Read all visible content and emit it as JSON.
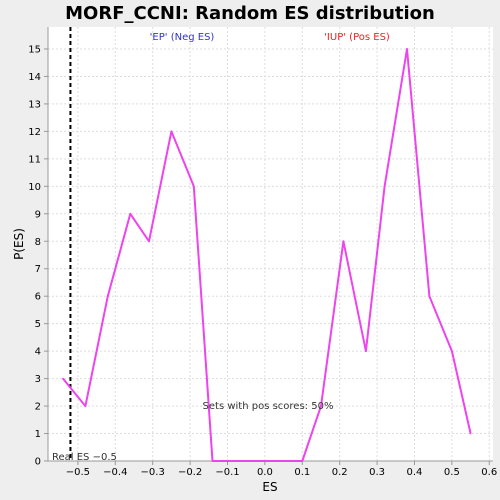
{
  "chart_data": {
    "type": "line",
    "title": "MORF_CCNI: Random ES distribution",
    "xlabel": "ES",
    "ylabel": "P(ES)",
    "xlim": [
      -0.58,
      0.61
    ],
    "ylim": [
      0,
      15.8
    ],
    "x_ticks": [
      -0.5,
      -0.4,
      -0.3,
      -0.2,
      -0.1,
      0.0,
      0.1,
      0.2,
      0.3,
      0.4,
      0.5,
      0.6
    ],
    "x_tick_labels": [
      "−0.5",
      "−0.4",
      "−0.3",
      "−0.2",
      "−0.1",
      "0.0",
      "0.1",
      "0.2",
      "0.3",
      "0.4",
      "0.5",
      "0.6"
    ],
    "y_ticks": [
      0,
      1,
      2,
      3,
      4,
      5,
      6,
      7,
      8,
      9,
      10,
      11,
      12,
      13,
      14,
      15
    ],
    "grid": true,
    "series": [
      {
        "color": "#ee44ee",
        "x": [
          -0.54,
          -0.48,
          -0.42,
          -0.36,
          -0.31,
          -0.25,
          -0.19,
          -0.14,
          -0.08,
          -0.02,
          0.04,
          0.1,
          0.15,
          0.21,
          0.27,
          0.32,
          0.38,
          0.44,
          0.5,
          0.55
        ],
        "y": [
          3,
          2,
          6,
          9,
          8,
          12,
          10,
          0,
          0,
          0,
          0,
          0,
          2,
          8,
          4,
          10,
          15,
          6,
          4,
          1
        ]
      }
    ],
    "real_es": {
      "value": -0.52,
      "label": "Real ES −0.5",
      "color": "#000000"
    },
    "annotations": {
      "neg": {
        "text": "'EP' (Neg ES)",
        "color": "#3333cc"
      },
      "pos": {
        "text": "'IUP' (Pos ES)",
        "color": "#ee2222"
      },
      "pos_scores": {
        "text": "Sets with pos scores: 50%",
        "color": "#333333"
      }
    },
    "colors": {
      "background": "#eeeeee",
      "plot_bg": "#ffffff",
      "grid": "#dddddd",
      "axis": "#999999"
    }
  }
}
